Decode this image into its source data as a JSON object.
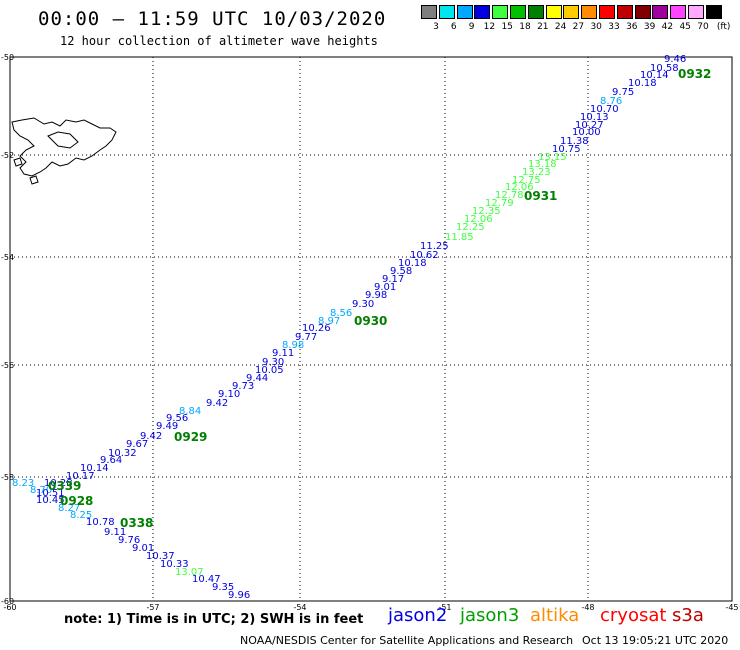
{
  "header": {
    "title": "00:00 – 11:59 UTC 10/03/2020",
    "subtitle": "12 hour collection of altimeter wave heights"
  },
  "legend": {
    "unit": "(ft)",
    "bins": [
      {
        "label": "3",
        "color": "#7f7f7f"
      },
      {
        "label": "6",
        "color": "#00e5ee"
      },
      {
        "label": "9",
        "color": "#00a8ff"
      },
      {
        "label": "12",
        "color": "#0000e0"
      },
      {
        "label": "15",
        "color": "#40ff40"
      },
      {
        "label": "18",
        "color": "#00c000"
      },
      {
        "label": "21",
        "color": "#008000"
      },
      {
        "label": "24",
        "color": "#ffff00"
      },
      {
        "label": "27",
        "color": "#ffcc00"
      },
      {
        "label": "30",
        "color": "#ff8c00"
      },
      {
        "label": "33",
        "color": "#ff0000"
      },
      {
        "label": "36",
        "color": "#c00000"
      },
      {
        "label": "39",
        "color": "#800000"
      },
      {
        "label": "42",
        "color": "#a000a0"
      },
      {
        "label": "45",
        "color": "#ff44ff"
      },
      {
        "label": "70",
        "color": "#ffaaff"
      },
      {
        "label": "",
        "color": "#000000"
      }
    ]
  },
  "map": {
    "lon_ticks": [
      "-60",
      "-57",
      "-54",
      "-51",
      "-48",
      "-45"
    ],
    "lat_ticks": [
      "-50",
      "-52",
      "-54",
      "-56",
      "-58",
      "-60"
    ]
  },
  "tracks": {
    "time_labels": [
      {
        "text": "0932",
        "color": "#008000"
      },
      {
        "text": "0931",
        "color": "#008000"
      },
      {
        "text": "0930",
        "color": "#008000"
      },
      {
        "text": "0929",
        "color": "#008000"
      },
      {
        "text": "0928",
        "color": "#008000"
      },
      {
        "text": "0339",
        "color": "#008000"
      },
      {
        "text": "0338",
        "color": "#008000"
      }
    ],
    "wave_labels": [
      {
        "text": "9.46",
        "color": "#0000e0"
      },
      {
        "text": "10.58",
        "color": "#0000e0"
      },
      {
        "text": "10.14",
        "color": "#0000e0"
      },
      {
        "text": "10.18",
        "color": "#0000e0"
      },
      {
        "text": "9.75",
        "color": "#0000e0"
      },
      {
        "text": "8.76",
        "color": "#00a8ff"
      },
      {
        "text": "10.70",
        "color": "#0000e0"
      },
      {
        "text": "10.13",
        "color": "#0000e0"
      },
      {
        "text": "10.27",
        "color": "#0000e0"
      },
      {
        "text": "10.00",
        "color": "#0000e0"
      },
      {
        "text": "11.38",
        "color": "#0000e0"
      },
      {
        "text": "10.75",
        "color": "#0000e0"
      },
      {
        "text": "13.15",
        "color": "#40ff40"
      },
      {
        "text": "13.18",
        "color": "#40ff40"
      },
      {
        "text": "13.23",
        "color": "#40ff40"
      },
      {
        "text": "12.75",
        "color": "#40ff40"
      },
      {
        "text": "12.06",
        "color": "#40ff40"
      },
      {
        "text": "12.78",
        "color": "#40ff40"
      },
      {
        "text": "12.79",
        "color": "#40ff40"
      },
      {
        "text": "12.35",
        "color": "#40ff40"
      },
      {
        "text": "12.06",
        "color": "#40ff40"
      },
      {
        "text": "12.25",
        "color": "#40ff40"
      },
      {
        "text": "11.85",
        "color": "#40ff40"
      },
      {
        "text": "11.25",
        "color": "#0000e0"
      },
      {
        "text": "10.62",
        "color": "#0000e0"
      },
      {
        "text": "10.18",
        "color": "#0000e0"
      },
      {
        "text": "9.58",
        "color": "#0000e0"
      },
      {
        "text": "9.17",
        "color": "#0000e0"
      },
      {
        "text": "9.01",
        "color": "#0000e0"
      },
      {
        "text": "9.98",
        "color": "#0000e0"
      },
      {
        "text": "9.30",
        "color": "#0000e0"
      },
      {
        "text": "8.56",
        "color": "#00a8ff"
      },
      {
        "text": "8.97",
        "color": "#00a8ff"
      },
      {
        "text": "10.26",
        "color": "#0000e0"
      },
      {
        "text": "9.77",
        "color": "#0000e0"
      },
      {
        "text": "8.98",
        "color": "#00a8ff"
      },
      {
        "text": "9.11",
        "color": "#0000e0"
      },
      {
        "text": "9.30",
        "color": "#0000e0"
      },
      {
        "text": "10.05",
        "color": "#0000e0"
      },
      {
        "text": "9.44",
        "color": "#0000e0"
      },
      {
        "text": "9.73",
        "color": "#0000e0"
      },
      {
        "text": "9.10",
        "color": "#0000e0"
      },
      {
        "text": "9.42",
        "color": "#0000e0"
      },
      {
        "text": "8.84",
        "color": "#00a8ff"
      },
      {
        "text": "9.56",
        "color": "#0000e0"
      },
      {
        "text": "9.49",
        "color": "#0000e0"
      },
      {
        "text": "9.42",
        "color": "#0000e0"
      },
      {
        "text": "9.67",
        "color": "#0000e0"
      },
      {
        "text": "10.32",
        "color": "#0000e0"
      },
      {
        "text": "9.64",
        "color": "#0000e0"
      },
      {
        "text": "10.14",
        "color": "#0000e0"
      },
      {
        "text": "10.17",
        "color": "#0000e0"
      },
      {
        "text": "10.28",
        "color": "#0000e0"
      },
      {
        "text": "8.23",
        "color": "#00a8ff"
      },
      {
        "text": "8.70",
        "color": "#00a8ff"
      },
      {
        "text": "10.51",
        "color": "#0000e0"
      },
      {
        "text": "10.45",
        "color": "#0000e0"
      },
      {
        "text": "8.27",
        "color": "#00a8ff"
      },
      {
        "text": "8.25",
        "color": "#00a8ff"
      },
      {
        "text": "10.78",
        "color": "#0000e0"
      },
      {
        "text": "9.11",
        "color": "#0000e0"
      },
      {
        "text": "9.76",
        "color": "#0000e0"
      },
      {
        "text": "9.01",
        "color": "#0000e0"
      },
      {
        "text": "10.37",
        "color": "#0000e0"
      },
      {
        "text": "10.33",
        "color": "#0000e0"
      },
      {
        "text": "13.07",
        "color": "#40ff40"
      },
      {
        "text": "10.47",
        "color": "#0000e0"
      },
      {
        "text": "9.35",
        "color": "#0000e0"
      },
      {
        "text": "9.96",
        "color": "#0000e0"
      }
    ]
  },
  "footer": {
    "note": "note: 1) Time is in UTC; 2) SWH is in feet",
    "satellites": [
      {
        "name": "jason2",
        "color": "#0000e0"
      },
      {
        "name": "jason3",
        "color": "#00a000"
      },
      {
        "name": "altika",
        "color": "#ff8c00"
      },
      {
        "name": "cryosat",
        "color": "#ff0000"
      },
      {
        "name": "s3a",
        "color": "#c00000"
      }
    ],
    "credit": "NOAA/NESDIS Center for Satellite Applications and Research",
    "timestamp": "Oct 13 19:05:21 UTC 2020"
  }
}
